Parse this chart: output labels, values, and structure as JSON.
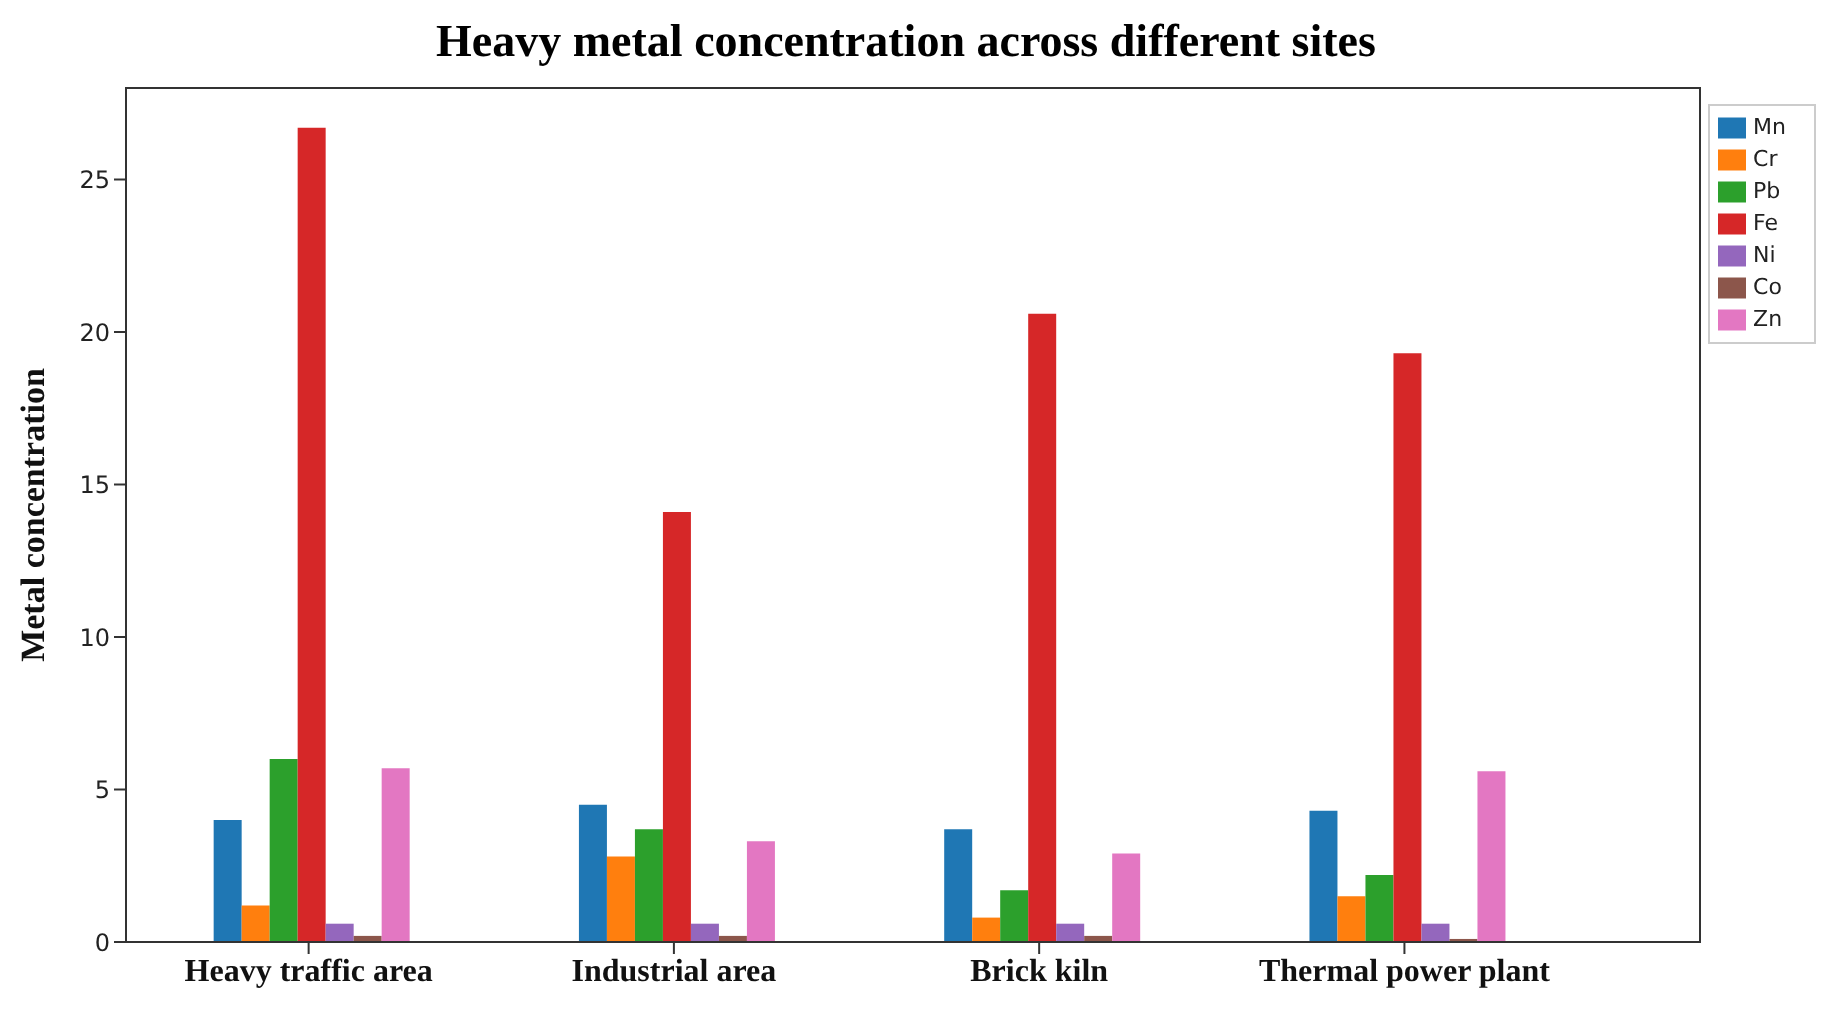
{
  "chart_data": {
    "type": "bar",
    "title": "Heavy metal concentration across different sites",
    "ylabel": "Metal concentration",
    "categories": [
      "Heavy traffic area",
      "Industrial area",
      "Brick kiln",
      "Thermal power plant"
    ],
    "series": [
      {
        "name": "Mn",
        "color": "#1f77b4",
        "values": [
          4.0,
          4.5,
          3.7,
          4.3
        ]
      },
      {
        "name": "Cr",
        "color": "#ff7f0e",
        "values": [
          1.2,
          2.8,
          0.8,
          1.5
        ]
      },
      {
        "name": "Pb",
        "color": "#2ca02c",
        "values": [
          6.0,
          3.7,
          1.7,
          2.2
        ]
      },
      {
        "name": "Fe",
        "color": "#d62728",
        "values": [
          26.7,
          14.1,
          20.6,
          19.3
        ]
      },
      {
        "name": "Ni",
        "color": "#9467bd",
        "values": [
          0.6,
          0.6,
          0.6,
          0.6
        ]
      },
      {
        "name": "Co",
        "color": "#8c564b",
        "values": [
          0.2,
          0.2,
          0.2,
          0.1
        ]
      },
      {
        "name": "Zn",
        "color": "#e377c2",
        "values": [
          5.7,
          3.3,
          2.9,
          5.6
        ]
      }
    ],
    "ylim": [
      0,
      28
    ],
    "yticks": [
      0,
      5,
      10,
      15,
      20,
      25
    ],
    "grid": false,
    "legend": "top right"
  }
}
